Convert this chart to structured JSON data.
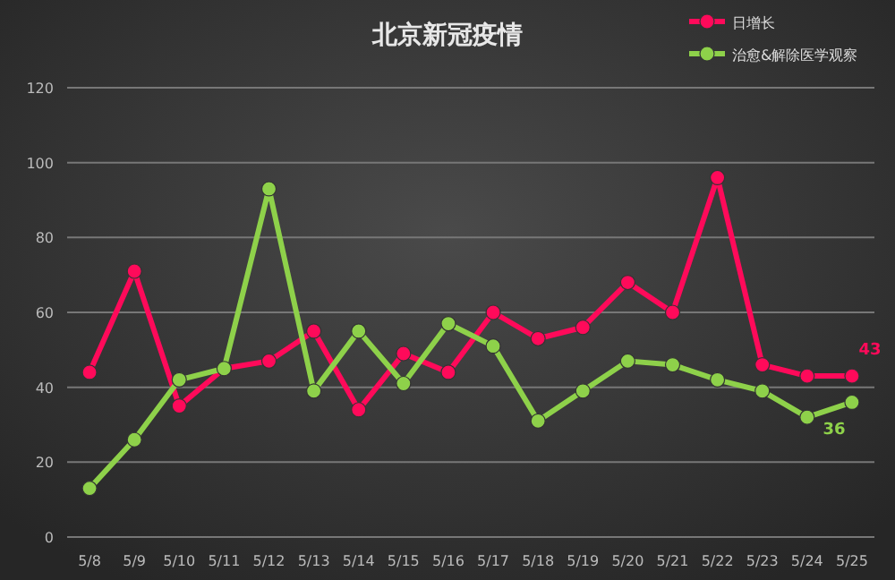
{
  "chart_data": {
    "type": "line",
    "title": "北京新冠疫情",
    "categories": [
      "5/8",
      "5/9",
      "5/10",
      "5/11",
      "5/12",
      "5/13",
      "5/14",
      "5/15",
      "5/16",
      "5/17",
      "5/18",
      "5/19",
      "5/20",
      "5/21",
      "5/22",
      "5/23",
      "5/24",
      "5/25"
    ],
    "series": [
      {
        "name": "日增长",
        "color": "#ff0a5a",
        "values": [
          44,
          71,
          35,
          45,
          47,
          55,
          34,
          49,
          44,
          60,
          53,
          56,
          68,
          60,
          96,
          46,
          43,
          43
        ],
        "value_labels": [
          null,
          null,
          null,
          null,
          null,
          null,
          null,
          null,
          null,
          null,
          null,
          null,
          null,
          null,
          null,
          null,
          null,
          "43"
        ]
      },
      {
        "name": "治愈&解除医学观察",
        "color": "#8ed14a",
        "values": [
          13,
          26,
          42,
          45,
          93,
          39,
          55,
          41,
          57,
          51,
          31,
          39,
          47,
          46,
          42,
          39,
          32,
          36
        ],
        "value_labels": [
          null,
          null,
          null,
          null,
          null,
          null,
          null,
          null,
          null,
          null,
          null,
          null,
          null,
          null,
          null,
          null,
          null,
          "36"
        ]
      }
    ],
    "ylim": [
      0,
      120
    ],
    "yticks": [
      0,
      20,
      40,
      60,
      80,
      100,
      120
    ],
    "grid": "y",
    "legend": "top right",
    "marker": "circle",
    "line_style": "solid"
  }
}
